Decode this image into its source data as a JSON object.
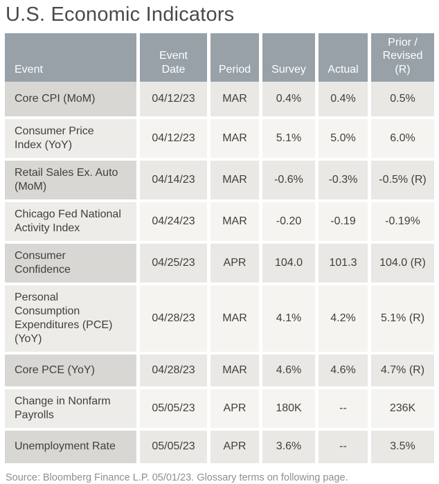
{
  "title": "U.S. Economic Indicators",
  "colors": {
    "header_bg": "#98A1A7",
    "header_text": "#FFFFFF",
    "title_text": "#4A4A45",
    "cell_text": "#403F3B",
    "odd_row_event_bg": "#D8D7D4",
    "odd_row_cell_bg": "#E9E8E5",
    "even_row_event_bg": "#EDECE9",
    "even_row_cell_bg": "#F5F4F1",
    "source_text": "#8E8E8A"
  },
  "table": {
    "columns": [
      {
        "key": "event",
        "label": "Event"
      },
      {
        "key": "date",
        "label": "Event Date"
      },
      {
        "key": "period",
        "label": "Period"
      },
      {
        "key": "survey",
        "label": "Survey"
      },
      {
        "key": "actual",
        "label": "Actual"
      },
      {
        "key": "prior",
        "label": "Prior / Revised (R)"
      }
    ],
    "rows": [
      {
        "event": "Core CPI (MoM)",
        "date": "04/12/23",
        "period": "MAR",
        "survey": "0.4%",
        "actual": "0.4%",
        "prior": "0.5%"
      },
      {
        "event": "Consumer Price Index (YoY)",
        "date": "04/12/23",
        "period": "MAR",
        "survey": "5.1%",
        "actual": "5.0%",
        "prior": "6.0%"
      },
      {
        "event": "Retail Sales Ex. Auto (MoM)",
        "date": "04/14/23",
        "period": "MAR",
        "survey": "-0.6%",
        "actual": "-0.3%",
        "prior": "-0.5% (R)"
      },
      {
        "event": "Chicago Fed National Activity Index",
        "date": "04/24/23",
        "period": "MAR",
        "survey": "-0.20",
        "actual": "-0.19",
        "prior": "-0.19%"
      },
      {
        "event": "Consumer Confidence",
        "date": "04/25/23",
        "period": "APR",
        "survey": "104.0",
        "actual": "101.3",
        "prior": "104.0 (R)"
      },
      {
        "event": "Personal Consumption Expenditures (PCE) (YoY)",
        "date": "04/28/23",
        "period": "MAR",
        "survey": "4.1%",
        "actual": "4.2%",
        "prior": "5.1% (R)"
      },
      {
        "event": "Core PCE (YoY)",
        "date": "04/28/23",
        "period": "MAR",
        "survey": "4.6%",
        "actual": "4.6%",
        "prior": "4.7% (R)"
      },
      {
        "event": "Change in Nonfarm Payrolls",
        "date": "05/05/23",
        "period": "APR",
        "survey": "180K",
        "actual": "--",
        "prior": "236K"
      },
      {
        "event": "Unemployment Rate",
        "date": "05/05/23",
        "period": "APR",
        "survey": "3.6%",
        "actual": "--",
        "prior": "3.5%"
      }
    ]
  },
  "footer": {
    "source": "Source: Bloomberg Finance L.P. 05/01/23. Glossary terms on following page."
  }
}
